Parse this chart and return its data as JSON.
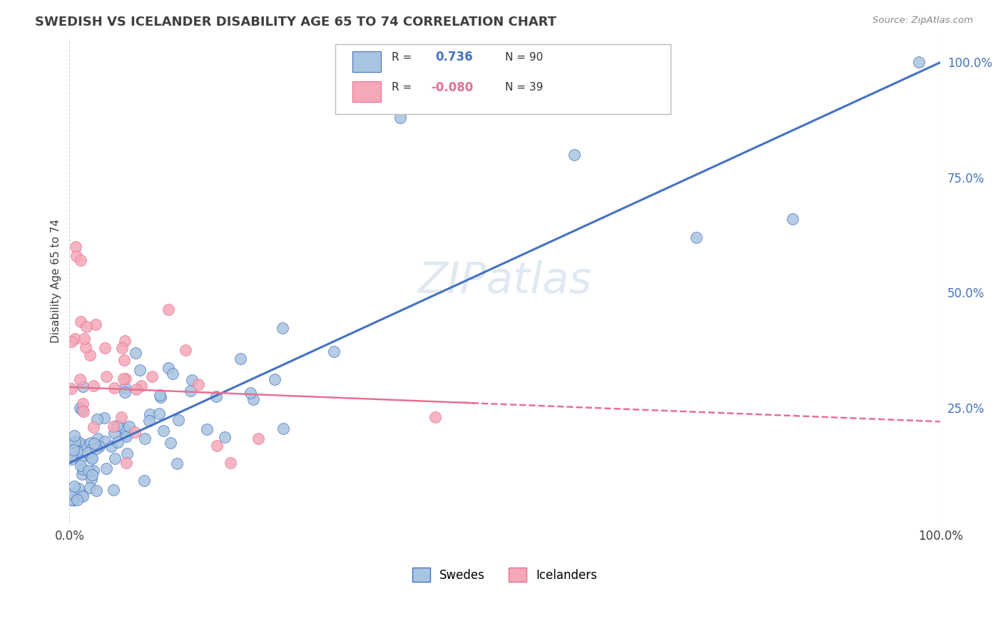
{
  "title": "SWEDISH VS ICELANDER DISABILITY AGE 65 TO 74 CORRELATION CHART",
  "source": "Source: ZipAtlas.com",
  "ylabel": "Disability Age 65 to 74",
  "ylabel_right_ticks": [
    "100.0%",
    "75.0%",
    "50.0%",
    "25.0%"
  ],
  "ylabel_right_vals": [
    1.0,
    0.75,
    0.5,
    0.25
  ],
  "legend_swedes": "Swedes",
  "legend_icelanders": "Icelanders",
  "R_swedes": 0.736,
  "N_swedes": 90,
  "R_icelanders": -0.08,
  "N_icelanders": 39,
  "swedes_color": "#a8c4e0",
  "icelanders_color": "#f4a8b8",
  "swedes_line_color": "#4472c4",
  "icelanders_line_color": "#e87090",
  "background_color": "#ffffff",
  "grid_color": "#cccccc",
  "title_color": "#404040",
  "sw_intercept": 0.13,
  "sw_slope": 0.87,
  "ic_intercept": 0.295,
  "ic_slope": -0.075
}
